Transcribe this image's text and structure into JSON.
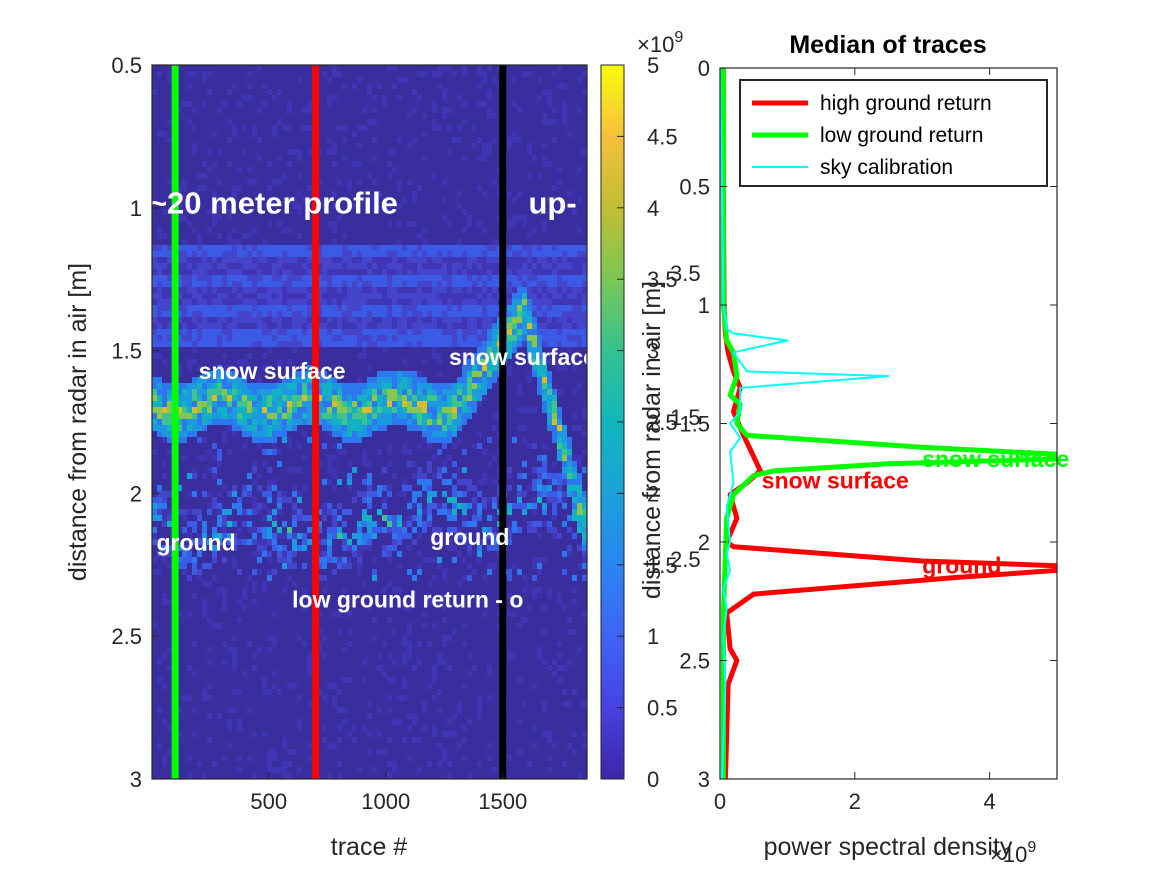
{
  "chart_data": [
    {
      "type": "heatmap",
      "xlabel": "trace #",
      "ylabel": "distance from radar in air [m]",
      "xlim": [
        1,
        1860
      ],
      "ylim": [
        0.5,
        3
      ],
      "y_reversed": true,
      "xticks": [
        500,
        1000,
        1500
      ],
      "yticks": [
        0.5,
        1,
        1.5,
        2,
        2.5,
        3
      ],
      "colormap": "parula",
      "vertical_lines": [
        {
          "x": 100,
          "color": "#00ff00"
        },
        {
          "x": 700,
          "color": "#ff0000"
        },
        {
          "x": 1500,
          "color": "#000000"
        }
      ],
      "annotations": [
        {
          "text": "~20 meter profile",
          "x": 520,
          "y": 1.02,
          "color": "#ffffff"
        },
        {
          "text": "up-",
          "x": 1610,
          "y": 1.02,
          "color": "#ffffff"
        },
        {
          "text": "snow surface",
          "x": 200,
          "y": 1.6,
          "color": "#ffffff"
        },
        {
          "text": "snow surface",
          "x": 1270,
          "y": 1.55,
          "color": "#ffffff"
        },
        {
          "text": "ground",
          "x": 20,
          "y": 2.2,
          "color": "#ffffff"
        },
        {
          "text": "ground",
          "x": 1190,
          "y": 2.18,
          "color": "#ffffff"
        },
        {
          "text": "low ground return - o",
          "x": 600,
          "y": 2.4,
          "color": "#ffffff"
        }
      ]
    },
    {
      "type": "colorbar",
      "range": [
        0,
        5000000000
      ],
      "ticks": [
        "0",
        "0.5",
        "1",
        "1.5",
        "2",
        "2.5",
        "3",
        "3.5",
        "4",
        "4.5",
        "5"
      ],
      "exponent_label": "×10",
      "exponent": "9",
      "overlay_label": "distance from radar in air [m]"
    },
    {
      "type": "line",
      "title": "Median of traces",
      "xlabel": "power spectral density",
      "x_exponent_label": "×10",
      "x_exponent": "9",
      "xlim": [
        0,
        5
      ],
      "ylim": [
        0,
        3
      ],
      "y_reversed": true,
      "xticks": [
        "0",
        "2",
        "4"
      ],
      "yticks": [
        "0",
        "0.5",
        "1",
        "1.5",
        "2",
        "2.5",
        "3"
      ],
      "ghost_yticks": [
        "1.5",
        "2.5",
        "3.5"
      ],
      "legend": "top-right",
      "series": [
        {
          "name": "high ground return",
          "color": "#ff0000",
          "width": 5,
          "points": [
            [
              0.05,
              0
            ],
            [
              0.05,
              0.5
            ],
            [
              0.06,
              1.0
            ],
            [
              0.08,
              1.12
            ],
            [
              0.12,
              1.2
            ],
            [
              0.2,
              1.28
            ],
            [
              0.3,
              1.35
            ],
            [
              0.2,
              1.45
            ],
            [
              0.35,
              1.55
            ],
            [
              0.6,
              1.7
            ],
            [
              0.4,
              1.75
            ],
            [
              0.15,
              1.8
            ],
            [
              0.25,
              1.9
            ],
            [
              0.1,
              2.0
            ],
            [
              0.2,
              2.02
            ],
            [
              3.0,
              2.08
            ],
            [
              5,
              2.1
            ],
            [
              5,
              2.12
            ],
            [
              3.5,
              2.15
            ],
            [
              0.5,
              2.22
            ],
            [
              0.1,
              2.3
            ],
            [
              0.15,
              2.45
            ],
            [
              0.25,
              2.5
            ],
            [
              0.12,
              2.6
            ],
            [
              0.08,
              3.0
            ]
          ]
        },
        {
          "name": "low ground return",
          "color": "#00ff00",
          "width": 5,
          "points": [
            [
              0.05,
              0
            ],
            [
              0.05,
              0.5
            ],
            [
              0.05,
              1.0
            ],
            [
              0.1,
              1.15
            ],
            [
              0.2,
              1.2
            ],
            [
              0.25,
              1.3
            ],
            [
              0.15,
              1.38
            ],
            [
              0.3,
              1.42
            ],
            [
              0.25,
              1.5
            ],
            [
              0.4,
              1.55
            ],
            [
              3.0,
              1.6
            ],
            [
              5,
              1.63
            ],
            [
              5,
              1.65
            ],
            [
              2.5,
              1.67
            ],
            [
              0.8,
              1.7
            ],
            [
              0.5,
              1.72
            ],
            [
              0.2,
              1.8
            ],
            [
              0.1,
              1.9
            ],
            [
              0.05,
              2.3
            ],
            [
              0.05,
              3.0
            ]
          ]
        },
        {
          "name": "sky calibration",
          "color": "#00ffff",
          "width": 2,
          "points": [
            [
              0.0,
              0
            ],
            [
              0.03,
              0.5
            ],
            [
              0.05,
              1.0
            ],
            [
              0.1,
              1.1
            ],
            [
              0.2,
              1.12
            ],
            [
              1.0,
              1.15
            ],
            [
              0.2,
              1.2
            ],
            [
              0.4,
              1.28
            ],
            [
              2.5,
              1.3
            ],
            [
              0.3,
              1.35
            ],
            [
              0.3,
              1.45
            ],
            [
              0.15,
              1.5
            ],
            [
              0.3,
              1.56
            ],
            [
              0.15,
              1.62
            ],
            [
              0.2,
              1.75
            ],
            [
              0.1,
              1.85
            ],
            [
              0.15,
              2.0
            ],
            [
              0.1,
              2.05
            ],
            [
              0.15,
              2.12
            ],
            [
              0.05,
              2.2
            ],
            [
              0.1,
              2.28
            ],
            [
              0.05,
              2.4
            ],
            [
              0.08,
              2.6
            ],
            [
              0.03,
              3.0
            ]
          ]
        }
      ],
      "annotations": [
        {
          "text": "snow surface",
          "x": 3.0,
          "y": 1.65,
          "color": "#00ff00"
        },
        {
          "text": "snow surface",
          "x": 0.62,
          "y": 1.74,
          "color": "#ff0000"
        },
        {
          "text": "ground",
          "x": 3.0,
          "y": 2.1,
          "color": "#ff0000"
        }
      ]
    }
  ]
}
